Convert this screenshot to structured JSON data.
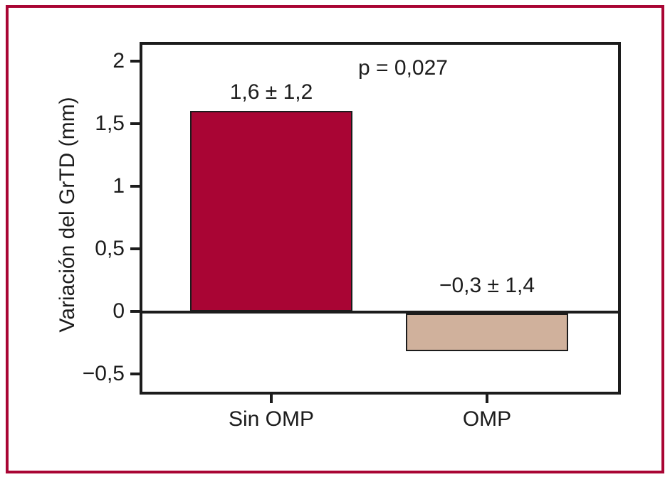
{
  "figure": {
    "frame_color": "#a90534",
    "background_color": "#ffffff",
    "axis_color": "#1c1c1c"
  },
  "chart_data": {
    "type": "bar",
    "title": "",
    "xlabel": "",
    "ylabel": "Variación del GrTD (mm)",
    "annotation": "p = 0,027",
    "categories": [
      "Sin OMP",
      "OMP"
    ],
    "series": [
      {
        "name": "Variación del GrTD (mm)",
        "values": [
          1.6,
          -0.3
        ]
      }
    ],
    "errors": [
      1.2,
      1.4
    ],
    "value_labels": [
      "1,6 ± 1,2",
      "−0,3 ± 1,4"
    ],
    "bar_colors": [
      "#a90534",
      "#d0b19c"
    ],
    "yticks": [
      {
        "value": 2,
        "label": "2"
      },
      {
        "value": 1.5,
        "label": "1,5"
      },
      {
        "value": 1,
        "label": "1"
      },
      {
        "value": 0.5,
        "label": "0,5"
      },
      {
        "value": 0,
        "label": "0"
      },
      {
        "value": -0.5,
        "label": "−0,5"
      }
    ],
    "ylim": [
      -0.66,
      2.15
    ],
    "grid": false,
    "legend": "none"
  }
}
